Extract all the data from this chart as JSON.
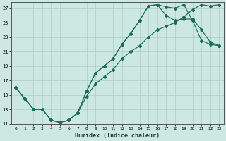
{
  "xlabel": "Humidex (Indice chaleur)",
  "bg_color": "#cce8e0",
  "grid_color": "#aaccc4",
  "line_color": "#1a6b5a",
  "xlim": [
    -0.5,
    23.5
  ],
  "ylim": [
    11,
    27.8
  ],
  "xticks": [
    0,
    1,
    2,
    3,
    4,
    5,
    6,
    7,
    8,
    9,
    10,
    11,
    12,
    13,
    14,
    15,
    16,
    17,
    18,
    19,
    20,
    21,
    22,
    23
  ],
  "yticks": [
    11,
    13,
    15,
    17,
    19,
    21,
    23,
    25,
    27
  ],
  "line1_x": [
    0,
    1,
    2,
    3,
    4,
    5,
    6,
    7,
    8,
    9,
    10,
    11,
    12,
    13,
    14,
    15,
    16,
    17,
    18,
    19,
    20,
    21,
    22,
    23
  ],
  "line1_y": [
    16.0,
    14.5,
    13.0,
    13.0,
    11.5,
    11.2,
    11.5,
    12.5,
    14.8,
    16.5,
    17.5,
    18.5,
    20.0,
    21.0,
    21.8,
    23.0,
    24.0,
    24.5,
    25.0,
    25.8,
    26.8,
    27.5,
    27.3,
    27.5
  ],
  "line2_x": [
    0,
    1,
    2,
    3,
    4,
    5,
    6,
    7,
    8,
    9,
    10,
    11,
    12,
    13,
    14,
    15,
    16,
    17,
    18,
    19,
    20,
    21,
    22,
    23
  ],
  "line2_y": [
    16.0,
    14.5,
    13.0,
    13.0,
    11.5,
    11.2,
    11.5,
    12.5,
    15.5,
    18.0,
    19.0,
    20.0,
    22.0,
    23.5,
    25.3,
    27.3,
    27.5,
    26.0,
    25.3,
    25.5,
    25.5,
    24.0,
    22.3,
    21.8
  ],
  "line3_x": [
    0,
    1,
    2,
    3,
    4,
    5,
    6,
    7,
    8,
    9,
    10,
    11,
    12,
    13,
    14,
    15,
    16,
    17,
    18,
    19,
    20,
    21,
    22,
    23
  ],
  "line3_y": [
    16.0,
    14.5,
    13.0,
    13.0,
    11.5,
    11.2,
    11.5,
    12.5,
    15.5,
    18.0,
    19.0,
    20.0,
    22.0,
    23.5,
    25.3,
    27.3,
    27.5,
    27.2,
    27.0,
    27.5,
    25.3,
    22.5,
    22.0,
    21.8
  ]
}
